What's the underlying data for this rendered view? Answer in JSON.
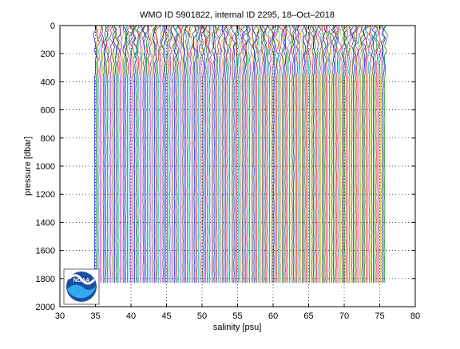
{
  "chart_data": {
    "type": "line",
    "title": "WMO ID 5901822, internal ID 2295, 18–Oct–2018",
    "xlabel": "salinity [psu]",
    "ylabel": "pressure [dbar]",
    "xlim": [
      30,
      80
    ],
    "ylim": [
      2000,
      0
    ],
    "y_reversed": true,
    "grid": true,
    "grid_style": "dotted",
    "x_ticks": [
      30,
      35,
      40,
      45,
      50,
      55,
      60,
      65,
      70,
      75,
      80
    ],
    "y_ticks": [
      0,
      200,
      400,
      600,
      800,
      1000,
      1200,
      1400,
      1600,
      1800,
      2000
    ],
    "x_tick_labels": [
      "30",
      "35",
      "40",
      "45",
      "50",
      "55",
      "60",
      "65",
      "70",
      "75",
      "80"
    ],
    "y_tick_labels": [
      "0",
      "200",
      "400",
      "600",
      "800",
      "1000",
      "1200",
      "1400",
      "1600",
      "1800",
      "2000"
    ],
    "series_info": {
      "profile_count": 205,
      "first_profile_base_salinity": 34.9,
      "profile_offset_step": 0.2,
      "pressure_min": 0,
      "pressure_max": 1830
    },
    "series_colors": [
      "#0000ff",
      "#008000",
      "#ff0000",
      "#00bfbf",
      "#bf00bf",
      "#bfbf00",
      "#404040"
    ],
    "logo": {
      "name": "noaa-logo",
      "text": "NOAA"
    }
  }
}
